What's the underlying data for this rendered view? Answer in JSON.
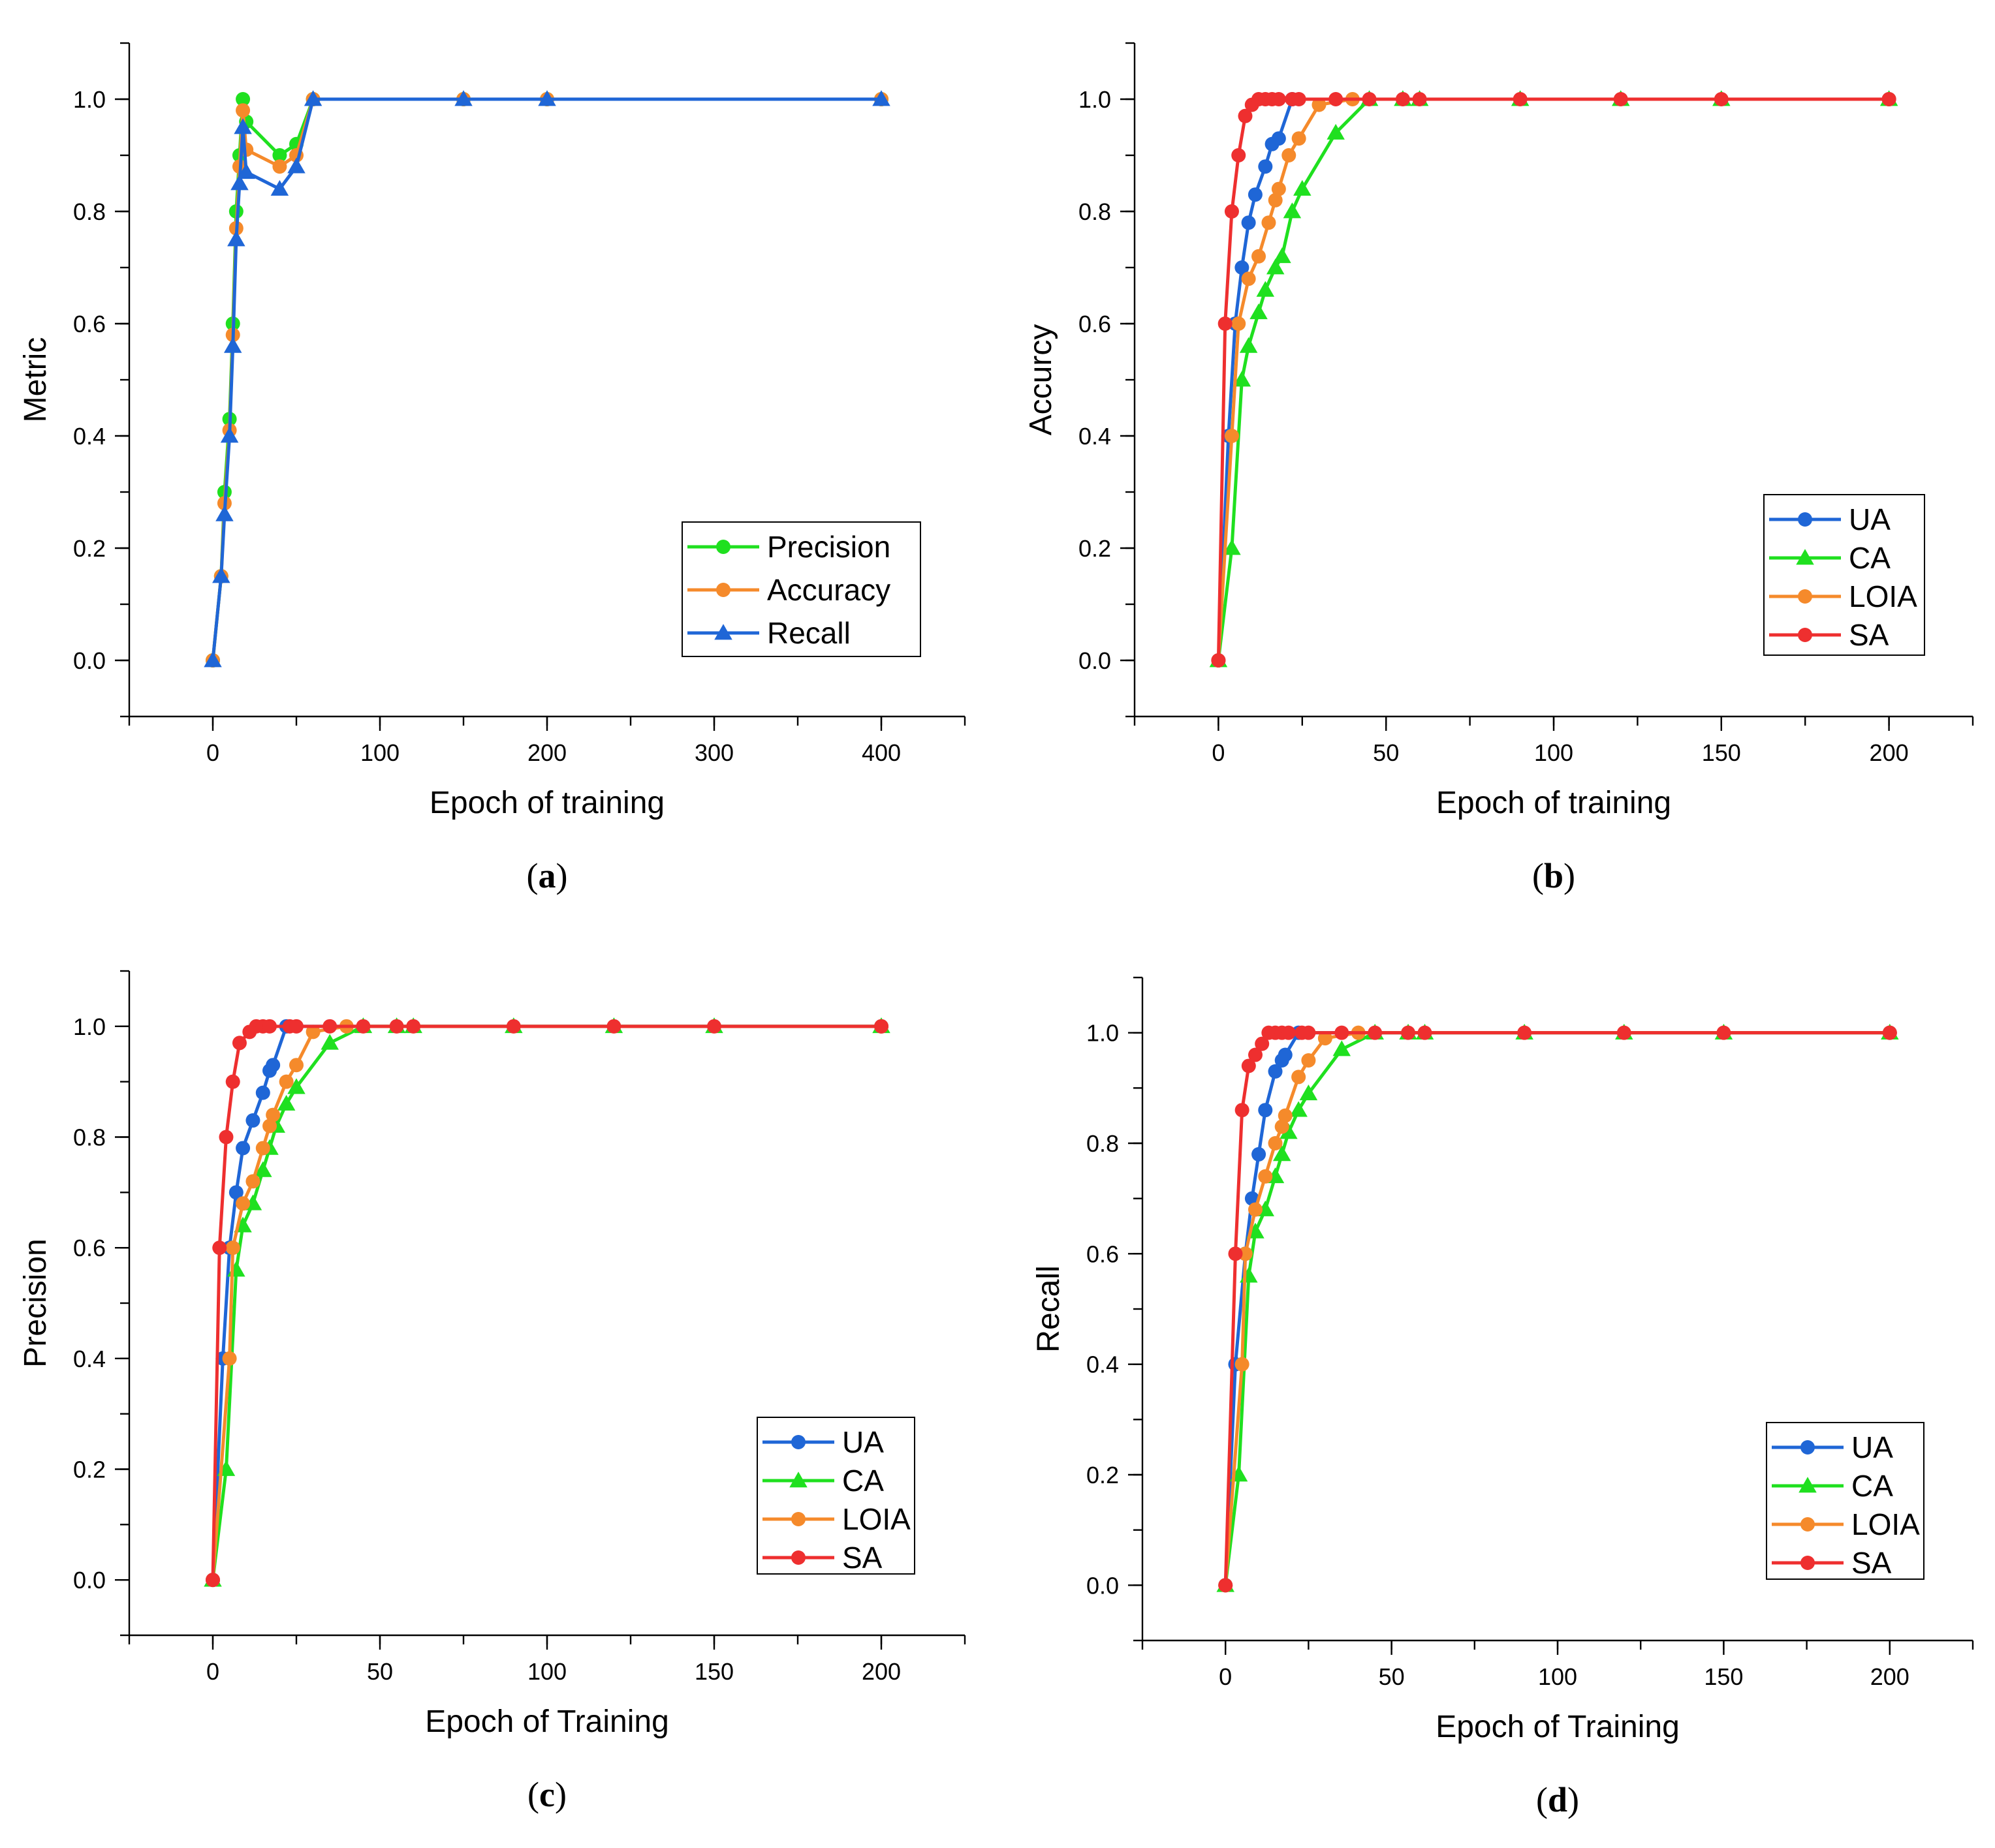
{
  "colors": {
    "Precision": "#1fe01f",
    "Accuracy": "#f58a2b",
    "Recall": "#1f66d6",
    "UA": "#1f66d6",
    "CA": "#1fe01f",
    "LOIA": "#f58a2b",
    "SA": "#ee2f2f"
  },
  "chart_data": [
    {
      "id": "a",
      "type": "line",
      "caption": "a",
      "xlabel": "Epoch of training",
      "ylabel": "Metric",
      "xlim": [
        -50,
        450
      ],
      "ylim": [
        -0.1,
        1.1
      ],
      "xticks": [
        0,
        100,
        200,
        300,
        400
      ],
      "yticks": [
        0.0,
        0.2,
        0.4,
        0.6,
        0.8,
        1.0
      ],
      "legend_position": "bottom-right",
      "series": [
        {
          "name": "Precision",
          "marker": "circle",
          "x": [
            0,
            5,
            7,
            10,
            12,
            14,
            16,
            18,
            20,
            40,
            50,
            60,
            150,
            200,
            400
          ],
          "y": [
            0.0,
            0.15,
            0.3,
            0.43,
            0.6,
            0.8,
            0.9,
            1.0,
            0.96,
            0.9,
            0.92,
            1.0,
            1.0,
            1.0,
            1.0
          ]
        },
        {
          "name": "Accuracy",
          "marker": "circle",
          "x": [
            0,
            5,
            7,
            10,
            12,
            14,
            16,
            18,
            20,
            40,
            50,
            60,
            150,
            200,
            400
          ],
          "y": [
            0.0,
            0.15,
            0.28,
            0.41,
            0.58,
            0.77,
            0.88,
            0.98,
            0.91,
            0.88,
            0.9,
            1.0,
            1.0,
            1.0,
            1.0
          ]
        },
        {
          "name": "Recall",
          "marker": "triangle",
          "x": [
            0,
            5,
            7,
            10,
            12,
            14,
            16,
            18,
            20,
            40,
            50,
            60,
            150,
            200,
            400
          ],
          "y": [
            0.0,
            0.15,
            0.26,
            0.4,
            0.56,
            0.75,
            0.85,
            0.95,
            0.87,
            0.84,
            0.88,
            1.0,
            1.0,
            1.0,
            1.0
          ]
        }
      ]
    },
    {
      "id": "b",
      "type": "line",
      "caption": "b",
      "xlabel": "Epoch of training",
      "ylabel": "Accurcy",
      "xlim": [
        -25,
        225
      ],
      "ylim": [
        -0.1,
        1.1
      ],
      "xticks": [
        0,
        50,
        100,
        150,
        200
      ],
      "yticks": [
        0.0,
        0.2,
        0.4,
        0.6,
        0.8,
        1.0
      ],
      "legend_position": "bottom-right",
      "series": [
        {
          "name": "UA",
          "marker": "circle",
          "x": [
            0,
            3,
            5,
            7,
            9,
            11,
            14,
            16,
            18,
            22,
            200
          ],
          "y": [
            0.0,
            0.4,
            0.6,
            0.7,
            0.78,
            0.83,
            0.88,
            0.92,
            0.93,
            1.0,
            1.0
          ]
        },
        {
          "name": "CA",
          "marker": "triangle",
          "x": [
            0,
            4,
            7,
            9,
            12,
            14,
            17,
            19,
            22,
            25,
            35,
            45,
            55,
            60,
            90,
            120,
            150,
            200
          ],
          "y": [
            0.0,
            0.2,
            0.5,
            0.56,
            0.62,
            0.66,
            0.7,
            0.72,
            0.8,
            0.84,
            0.94,
            1.0,
            1.0,
            1.0,
            1.0,
            1.0,
            1.0,
            1.0
          ]
        },
        {
          "name": "LOIA",
          "marker": "circle",
          "x": [
            0,
            4,
            6,
            9,
            12,
            15,
            17,
            18,
            21,
            24,
            30,
            40,
            200
          ],
          "y": [
            0.0,
            0.4,
            0.6,
            0.68,
            0.72,
            0.78,
            0.82,
            0.84,
            0.9,
            0.93,
            0.99,
            1.0,
            1.0
          ]
        },
        {
          "name": "SA",
          "marker": "circle",
          "x": [
            0,
            2,
            4,
            6,
            8,
            10,
            12,
            14,
            16,
            18,
            22,
            24,
            35,
            45,
            55,
            60,
            90,
            120,
            150,
            200
          ],
          "y": [
            0.0,
            0.6,
            0.8,
            0.9,
            0.97,
            0.99,
            1.0,
            1.0,
            1.0,
            1.0,
            1.0,
            1.0,
            1.0,
            1.0,
            1.0,
            1.0,
            1.0,
            1.0,
            1.0,
            1.0
          ]
        }
      ]
    },
    {
      "id": "c",
      "type": "line",
      "caption": "c",
      "xlabel": "Epoch of Training",
      "ylabel": "Precision",
      "xlim": [
        -25,
        225
      ],
      "ylim": [
        -0.1,
        1.1
      ],
      "xticks": [
        0,
        50,
        100,
        150,
        200
      ],
      "yticks": [
        0.0,
        0.2,
        0.4,
        0.6,
        0.8,
        1.0
      ],
      "legend_position": "bottom-right",
      "series": [
        {
          "name": "UA",
          "marker": "circle",
          "x": [
            0,
            3,
            5,
            7,
            9,
            12,
            15,
            17,
            18,
            22,
            200
          ],
          "y": [
            0.0,
            0.4,
            0.6,
            0.7,
            0.78,
            0.83,
            0.88,
            0.92,
            0.93,
            1.0,
            1.0
          ]
        },
        {
          "name": "CA",
          "marker": "triangle",
          "x": [
            0,
            4,
            7,
            9,
            12,
            15,
            17,
            19,
            22,
            25,
            35,
            45,
            55,
            60,
            90,
            120,
            150,
            200
          ],
          "y": [
            0.0,
            0.2,
            0.56,
            0.64,
            0.68,
            0.74,
            0.78,
            0.82,
            0.86,
            0.89,
            0.97,
            1.0,
            1.0,
            1.0,
            1.0,
            1.0,
            1.0,
            1.0
          ]
        },
        {
          "name": "LOIA",
          "marker": "circle",
          "x": [
            0,
            5,
            6,
            9,
            12,
            15,
            17,
            18,
            22,
            25,
            30,
            40,
            200
          ],
          "y": [
            0.0,
            0.4,
            0.6,
            0.68,
            0.72,
            0.78,
            0.82,
            0.84,
            0.9,
            0.93,
            0.99,
            1.0,
            1.0
          ]
        },
        {
          "name": "SA",
          "marker": "circle",
          "x": [
            0,
            2,
            4,
            6,
            8,
            11,
            13,
            15,
            17,
            23,
            25,
            35,
            45,
            55,
            60,
            90,
            120,
            150,
            200
          ],
          "y": [
            0.0,
            0.6,
            0.8,
            0.9,
            0.97,
            0.99,
            1.0,
            1.0,
            1.0,
            1.0,
            1.0,
            1.0,
            1.0,
            1.0,
            1.0,
            1.0,
            1.0,
            1.0,
            1.0
          ]
        }
      ]
    },
    {
      "id": "d",
      "type": "line",
      "caption": "d",
      "xlabel": "Epoch of Training",
      "ylabel": "Recall",
      "xlim": [
        -25,
        225
      ],
      "ylim": [
        -0.1,
        1.1
      ],
      "xticks": [
        0,
        50,
        100,
        150,
        200
      ],
      "yticks": [
        0.0,
        0.2,
        0.4,
        0.6,
        0.8,
        1.0
      ],
      "legend_position": "bottom-right",
      "series": [
        {
          "name": "UA",
          "marker": "circle",
          "x": [
            0,
            3,
            6,
            8,
            10,
            12,
            15,
            17,
            18,
            22,
            200
          ],
          "y": [
            0.0,
            0.4,
            0.6,
            0.7,
            0.78,
            0.86,
            0.93,
            0.95,
            0.96,
            1.0,
            1.0
          ]
        },
        {
          "name": "CA",
          "marker": "triangle",
          "x": [
            0,
            4,
            7,
            9,
            12,
            15,
            17,
            19,
            22,
            25,
            35,
            45,
            55,
            60,
            90,
            120,
            150,
            200
          ],
          "y": [
            0.0,
            0.2,
            0.56,
            0.64,
            0.68,
            0.74,
            0.78,
            0.82,
            0.86,
            0.89,
            0.97,
            1.0,
            1.0,
            1.0,
            1.0,
            1.0,
            1.0,
            1.0
          ]
        },
        {
          "name": "LOIA",
          "marker": "circle",
          "x": [
            0,
            5,
            6,
            9,
            12,
            15,
            17,
            18,
            22,
            25,
            30,
            40,
            200
          ],
          "y": [
            0.0,
            0.4,
            0.6,
            0.68,
            0.74,
            0.8,
            0.83,
            0.85,
            0.92,
            0.95,
            0.99,
            1.0,
            1.0
          ]
        },
        {
          "name": "SA",
          "marker": "circle",
          "x": [
            0,
            3,
            5,
            7,
            9,
            11,
            13,
            15,
            17,
            19,
            23,
            25,
            35,
            45,
            55,
            60,
            90,
            120,
            150,
            200
          ],
          "y": [
            0.0,
            0.6,
            0.86,
            0.94,
            0.96,
            0.98,
            1.0,
            1.0,
            1.0,
            1.0,
            1.0,
            1.0,
            1.0,
            1.0,
            1.0,
            1.0,
            1.0,
            1.0,
            1.0,
            1.0
          ]
        }
      ]
    }
  ]
}
